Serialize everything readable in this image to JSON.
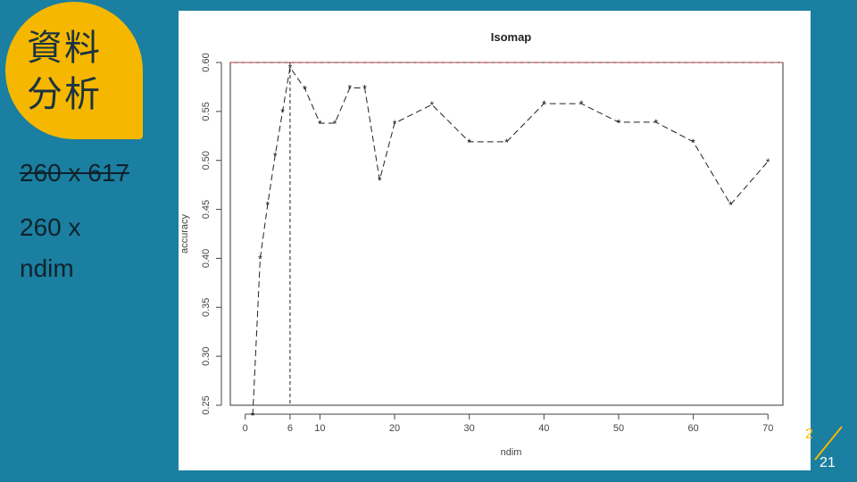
{
  "slide": {
    "badge_line1": "資料",
    "badge_line2": "分析",
    "struck_text": "260 x 617",
    "dims_line1": "260 x",
    "dims_line2": "ndim",
    "page_number": "21",
    "page_number_partial": "2"
  },
  "colors": {
    "background": "#1a7fa0",
    "badge": "#f5b700",
    "reference_line": "#cc3333"
  },
  "chart_data": {
    "type": "line",
    "title": "Isomap",
    "xlabel": "ndim",
    "ylabel": "accuracy",
    "xlim": [
      -2,
      72
    ],
    "ylim": [
      0.25,
      0.6
    ],
    "xticks": [
      0,
      6,
      10,
      20,
      30,
      40,
      50,
      60,
      70
    ],
    "yticks": [
      0.25,
      0.3,
      0.35,
      0.4,
      0.45,
      0.5,
      0.55,
      0.6
    ],
    "ytick_labels": [
      "0.25",
      "0.30",
      "0.35",
      "0.40",
      "0.45",
      "0.50",
      "0.55",
      "0.60"
    ],
    "hline": 0.6,
    "vline": 6,
    "marker": "*",
    "series": [
      {
        "x": [
          1,
          2,
          3,
          4,
          5,
          6,
          8,
          10,
          12,
          14,
          16,
          18,
          20,
          25,
          30,
          35,
          40,
          45,
          50,
          55,
          60,
          65,
          70
        ],
        "y": [
          0.24,
          0.4,
          0.455,
          0.505,
          0.55,
          0.595,
          0.573,
          0.538,
          0.538,
          0.574,
          0.574,
          0.48,
          0.538,
          0.557,
          0.519,
          0.519,
          0.558,
          0.558,
          0.539,
          0.539,
          0.519,
          0.455,
          0.499
        ]
      }
    ]
  }
}
